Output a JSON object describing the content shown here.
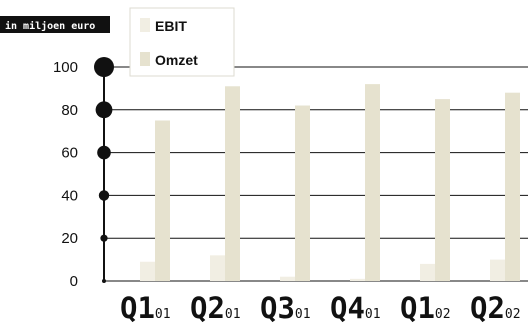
{
  "unit_label": "in miljoen euro",
  "colors": {
    "ebit": "#f1eee3",
    "omzet": "#e6e2cf",
    "axis": "#111111",
    "unit_bg": "#111111"
  },
  "chart_data": {
    "type": "bar",
    "categories": [
      {
        "main": "Q1",
        "sub": "01"
      },
      {
        "main": "Q2",
        "sub": "01"
      },
      {
        "main": "Q3",
        "sub": "01"
      },
      {
        "main": "Q4",
        "sub": "01"
      },
      {
        "main": "Q1",
        "sub": "02"
      },
      {
        "main": "Q2",
        "sub": "02"
      }
    ],
    "series": [
      {
        "name": "EBIT",
        "values": [
          9,
          12,
          2,
          1,
          8,
          10
        ]
      },
      {
        "name": "Omzet",
        "values": [
          75,
          91,
          82,
          92,
          85,
          88
        ]
      }
    ],
    "yticks": [
      "0",
      "20",
      "40",
      "60",
      "80",
      "100"
    ],
    "ylim": [
      0,
      100
    ],
    "grid": true,
    "legend_position": "top-left"
  }
}
